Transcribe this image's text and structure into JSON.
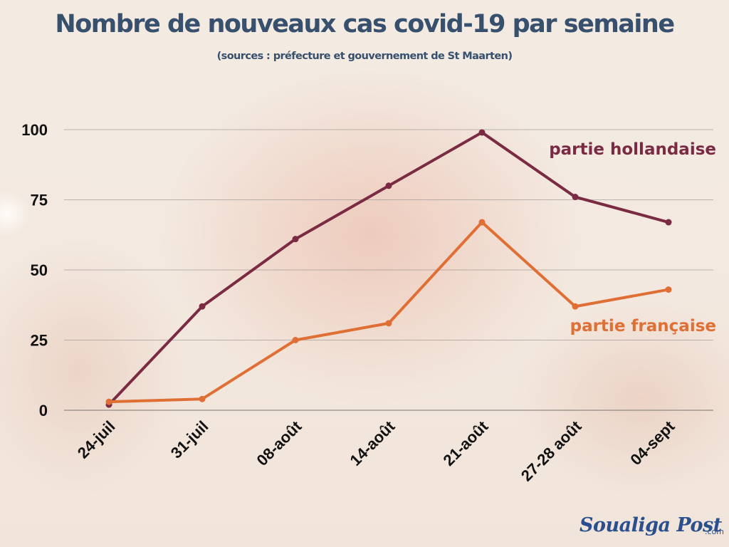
{
  "title": "Nombre de nouveaux cas covid-19 par semaine",
  "subtitle": "(sources : préfecture et gouvernement de St Maarten)",
  "logo": {
    "name": "Soualiga Post",
    "suffix": ".com"
  },
  "colors": {
    "hollandaise": "#7a2b43",
    "francaise": "#df6f35",
    "title": "#36506e",
    "grid": "#7f7f7f"
  },
  "chart_data": {
    "type": "line",
    "title": "Nombre de nouveaux cas covid-19 par semaine",
    "subtitle": "(sources : préfecture et gouvernement de St Maarten)",
    "categories": [
      "24-juil",
      "31-juil",
      "08-août",
      "14-août",
      "21-août",
      "27-28 août",
      "04-sept"
    ],
    "series": [
      {
        "name": "partie hollandaise",
        "color": "#7a2b43",
        "values": [
          2,
          37,
          61,
          80,
          99,
          76,
          67
        ]
      },
      {
        "name": "partie française",
        "color": "#df6f35",
        "values": [
          3,
          4,
          25,
          31,
          67,
          37,
          43
        ]
      }
    ],
    "ylim": [
      0,
      100
    ],
    "yticks": [
      0,
      25,
      50,
      75,
      100
    ],
    "xlabel": "",
    "ylabel": "",
    "grid": true,
    "legend": "series labels at right end of lines"
  }
}
